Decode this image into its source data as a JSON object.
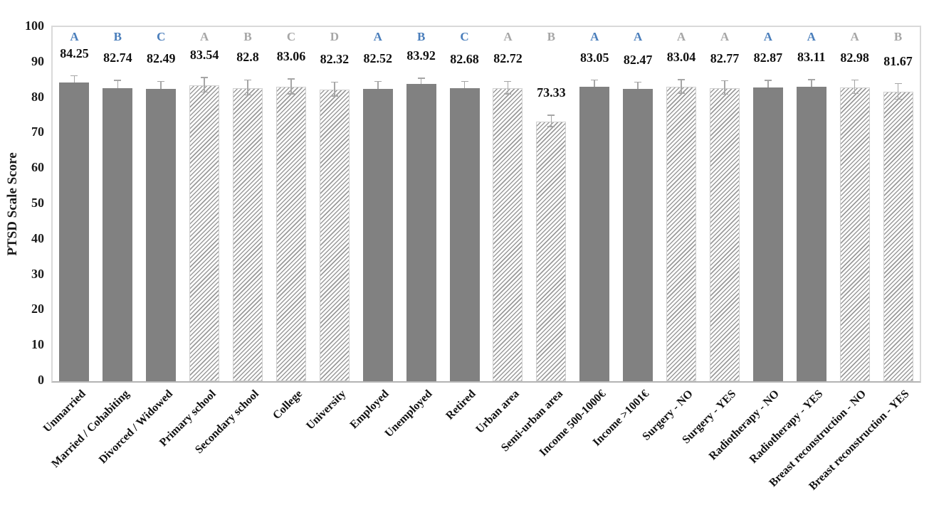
{
  "chart_data": {
    "type": "bar",
    "title": "",
    "xlabel": "",
    "ylabel": "PTSD Scale Score",
    "ylim": [
      0,
      100
    ],
    "yticks": [
      0,
      10,
      20,
      30,
      40,
      50,
      60,
      70,
      80,
      90,
      100
    ],
    "grid": false,
    "legend": "none",
    "bar_groups_note": "letters above bars mark subgroup comparisons; blue letters on solid bars, gray letters on hatched bars",
    "colors": {
      "solid_bar": "#818181",
      "hatch_line": "#9a9a9a",
      "hatch_background": "#ffffff",
      "letter_blue": "#4A7EBB",
      "letter_gray": "#A6A6A6",
      "value_text": "#111111",
      "error_bar": "#a6a6a6",
      "plot_border": "#d9d9d9",
      "axis_line": "#b3b3b3"
    },
    "categories": [
      "Unmarried",
      "Married / Cohabiting",
      "Divorced / Widowed",
      "Primary school",
      "Secondary school",
      "College",
      "University",
      "Employed",
      "Unemployed",
      "Retired",
      "Urban area",
      "Semi-urban area",
      "Income 500-1000€",
      "Income >1001€",
      "Surgery - NO",
      "Surgery - YES",
      "Radiotherapy - NO",
      "Radiotherapy - YES",
      "Breast reconstruction - NO",
      "Breast reconstruction - YES"
    ],
    "bars": [
      {
        "label": "Unmarried",
        "value": 84.25,
        "value_label": "84.25",
        "letter": "A",
        "letter_color": "blue",
        "fill": "solid",
        "error": 1.8
      },
      {
        "label": "Married / Cohabiting",
        "value": 82.74,
        "value_label": "82.74",
        "letter": "B",
        "letter_color": "blue",
        "fill": "solid",
        "error": 2.0
      },
      {
        "label": "Divorced / Widowed",
        "value": 82.49,
        "value_label": "82.49",
        "letter": "C",
        "letter_color": "blue",
        "fill": "solid",
        "error": 2.0
      },
      {
        "label": "Primary school",
        "value": 83.54,
        "value_label": "83.54",
        "letter": "A",
        "letter_color": "gray",
        "fill": "hatch",
        "error": 2.1
      },
      {
        "label": "Secondary school",
        "value": 82.8,
        "value_label": "82.8",
        "letter": "B",
        "letter_color": "gray",
        "fill": "hatch",
        "error": 2.1
      },
      {
        "label": "College",
        "value": 83.06,
        "value_label": "83.06",
        "letter": "C",
        "letter_color": "gray",
        "fill": "hatch",
        "error": 2.1
      },
      {
        "label": "University",
        "value": 82.32,
        "value_label": "82.32",
        "letter": "D",
        "letter_color": "gray",
        "fill": "hatch",
        "error": 2.0
      },
      {
        "label": "Employed",
        "value": 82.52,
        "value_label": "82.52",
        "letter": "A",
        "letter_color": "blue",
        "fill": "solid",
        "error": 2.0
      },
      {
        "label": "Unemployed",
        "value": 83.92,
        "value_label": "83.92",
        "letter": "B",
        "letter_color": "blue",
        "fill": "solid",
        "error": 1.5
      },
      {
        "label": "Retired",
        "value": 82.68,
        "value_label": "82.68",
        "letter": "C",
        "letter_color": "blue",
        "fill": "solid",
        "error": 1.8
      },
      {
        "label": "Urban area",
        "value": 82.72,
        "value_label": "82.72",
        "letter": "A",
        "letter_color": "gray",
        "fill": "hatch",
        "error": 1.8
      },
      {
        "label": "Semi-urban area",
        "value": 73.33,
        "value_label": "73.33",
        "letter": "B",
        "letter_color": "gray",
        "fill": "hatch",
        "error": 1.6
      },
      {
        "label": "Income 500-1000€",
        "value": 83.05,
        "value_label": "83.05",
        "letter": "A",
        "letter_color": "blue",
        "fill": "solid",
        "error": 1.8
      },
      {
        "label": "Income >1001€",
        "value": 82.47,
        "value_label": "82.47",
        "letter": "A",
        "letter_color": "blue",
        "fill": "solid",
        "error": 1.8
      },
      {
        "label": "Surgery - NO",
        "value": 83.04,
        "value_label": "83.04",
        "letter": "A",
        "letter_color": "gray",
        "fill": "hatch",
        "error": 1.9
      },
      {
        "label": "Surgery - YES",
        "value": 82.77,
        "value_label": "82.77",
        "letter": "A",
        "letter_color": "gray",
        "fill": "hatch",
        "error": 1.9
      },
      {
        "label": "Radiotherapy - NO",
        "value": 82.87,
        "value_label": "82.87",
        "letter": "A",
        "letter_color": "blue",
        "fill": "solid",
        "error": 1.9
      },
      {
        "label": "Radiotherapy - YES",
        "value": 83.11,
        "value_label": "83.11",
        "letter": "A",
        "letter_color": "blue",
        "fill": "solid",
        "error": 1.9
      },
      {
        "label": "Breast reconstruction - NO",
        "value": 82.98,
        "value_label": "82.98",
        "letter": "A",
        "letter_color": "gray",
        "fill": "hatch",
        "error": 1.9
      },
      {
        "label": "Breast reconstruction - YES",
        "value": 81.67,
        "value_label": "81.67",
        "letter": "B",
        "letter_color": "gray",
        "fill": "hatch",
        "error": 2.2
      }
    ]
  }
}
